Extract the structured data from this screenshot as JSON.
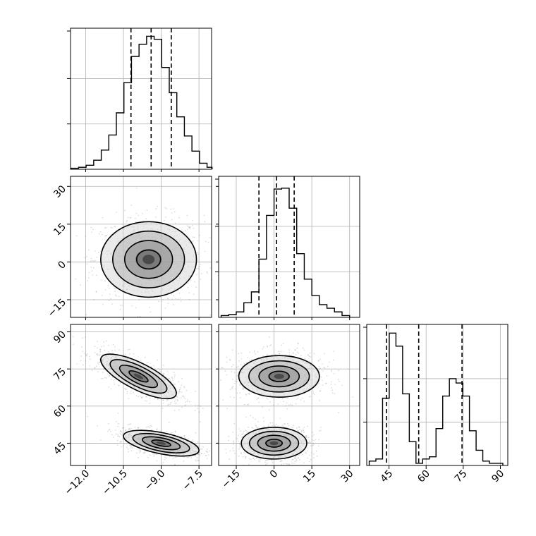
{
  "chart_data": {
    "type": "corner",
    "title": "",
    "parameters": [
      {
        "range": [
          -12.6,
          -7.0
        ],
        "ticks": [
          -12.0,
          -10.5,
          -9.0,
          -7.5
        ],
        "tick_labels": [
          "−12.0",
          "−10.5",
          "−9.0",
          "−7.5"
        ],
        "quantiles": [
          -10.2,
          -9.4,
          -8.6
        ]
      },
      {
        "range": [
          -22,
          34
        ],
        "ticks": [
          -15,
          0,
          15,
          30
        ],
        "tick_labels": [
          "−15",
          "0",
          "15",
          "30"
        ],
        "quantiles": [
          -6,
          1,
          8
        ]
      },
      {
        "range": [
          36,
          93
        ],
        "ticks": [
          45,
          60,
          75,
          90
        ],
        "tick_labels": [
          "45",
          "60",
          "75",
          "90"
        ],
        "quantiles": [
          44,
          57,
          74.5
        ]
      }
    ],
    "histograms": [
      {
        "bins": [
          -12.58,
          -12.28,
          -11.98,
          -11.68,
          -11.38,
          -11.08,
          -10.78,
          -10.48,
          -10.18,
          -9.88,
          -9.58,
          -9.28,
          -8.98,
          -8.68,
          -8.38,
          -8.08,
          -7.78,
          -7.48,
          -7.18,
          -6.98
        ],
        "counts": [
          1,
          2,
          4,
          9,
          19,
          34,
          56,
          86,
          112,
          124,
          132,
          129,
          101,
          76,
          52,
          33,
          18,
          6,
          2
        ],
        "ylim": [
          0,
          140
        ],
        "yticks": [
          45,
          90
        ]
      },
      {
        "bins": [
          -21,
          -18,
          -15,
          -12,
          -9,
          -6,
          -3,
          0,
          3,
          6,
          9,
          12,
          15,
          18,
          21,
          24,
          27,
          30
        ],
        "counts": [
          2,
          3,
          6,
          16,
          28,
          64,
          112,
          141,
          142,
          120,
          70,
          42,
          24,
          14,
          10,
          6,
          2
        ],
        "ylim": [
          0,
          155
        ],
        "yticks": [
          50,
          100
        ]
      },
      {
        "bins": [
          37,
          39.7,
          42.4,
          45.1,
          47.8,
          50.5,
          53.2,
          55.9,
          58.6,
          61.3,
          64,
          66.7,
          69.4,
          72.1,
          74.8,
          77.5,
          80.2,
          82.9,
          85.6,
          88.3,
          91
        ],
        "counts": [
          2,
          3,
          31,
          61,
          55,
          33,
          11,
          1,
          3,
          4,
          17,
          32,
          40,
          38,
          32,
          16,
          7,
          2,
          1,
          1
        ],
        "ylim": [
          0,
          65
        ],
        "yticks": [
          20,
          40
        ]
      }
    ],
    "panels_2d": [
      {
        "x_param": 0,
        "y_param": 1,
        "modes": [
          {
            "cx": -9.5,
            "cy": 1,
            "sx": 0.95,
            "sy": 7.5,
            "rho": 0
          }
        ]
      },
      {
        "x_param": 0,
        "y_param": 2,
        "modes": [
          {
            "cx": -9.9,
            "cy": 72,
            "sx": 0.75,
            "sy": 4.5,
            "rho": -0.75
          },
          {
            "cx": -9.0,
            "cy": 45,
            "sx": 0.75,
            "sy": 2.6,
            "rho": -0.55
          }
        ]
      },
      {
        "x_param": 1,
        "y_param": 2,
        "modes": [
          {
            "cx": 2,
            "cy": 72,
            "sx": 8,
            "sy": 4.2,
            "rho": 0
          },
          {
            "cx": 0,
            "cy": 45,
            "sx": 6.5,
            "sy": 3.2,
            "rho": 0
          }
        ]
      }
    ],
    "contour_levels": [
      0.5,
      1.0,
      1.5,
      2.0
    ],
    "grid": true,
    "colors": {
      "points": "#9a9a9a",
      "lines": "#000000",
      "grid": "#b0b0b0"
    }
  }
}
